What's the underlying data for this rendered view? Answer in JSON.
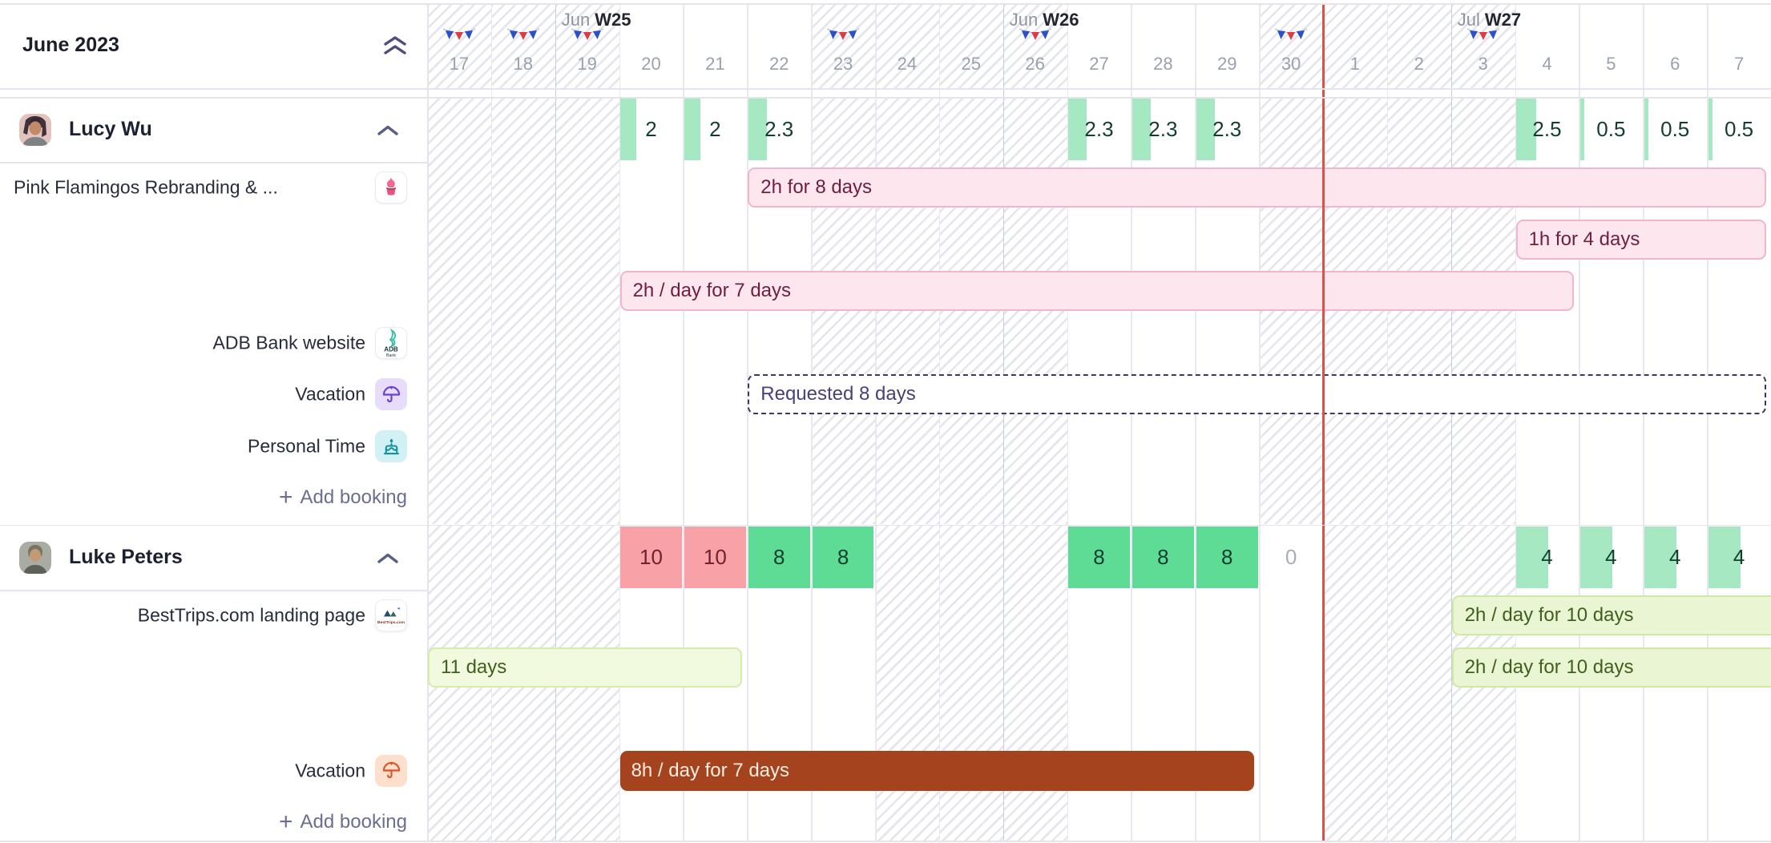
{
  "header": {
    "month_label": "June 2023"
  },
  "timeline": {
    "weeks": [
      {
        "day_index": 2,
        "month": "Jun",
        "week": "W25"
      },
      {
        "day_index": 9,
        "month": "Jun",
        "week": "W26"
      },
      {
        "day_index": 16,
        "month": "Jul",
        "week": "W27"
      }
    ],
    "days": [
      "17",
      "18",
      "19",
      "20",
      "21",
      "22",
      "23",
      "24",
      "25",
      "26",
      "27",
      "28",
      "29",
      "30",
      "1",
      "2",
      "3",
      "4",
      "5",
      "6",
      "7"
    ],
    "flag_day_indexes": [
      0,
      1,
      2,
      6,
      9,
      13,
      16
    ],
    "nonworking_day_indexes": {
      "header": [
        0,
        1,
        2,
        6,
        7,
        8,
        9,
        13,
        14,
        15,
        16
      ],
      "lucy": [
        0,
        1,
        2,
        6,
        7,
        8,
        9,
        13,
        14,
        15,
        16
      ],
      "luke": [
        0,
        1,
        2,
        7,
        8,
        9,
        14,
        15,
        16
      ]
    },
    "today_marker_day_index": 14
  },
  "people": [
    {
      "id": "lucy",
      "name": "Lucy Wu",
      "capacity": [
        {
          "day_index": 3,
          "label": "2",
          "hours": 2
        },
        {
          "day_index": 4,
          "label": "2",
          "hours": 2
        },
        {
          "day_index": 5,
          "label": "2.3",
          "hours": 2.3
        },
        {
          "day_index": 10,
          "label": "2.3",
          "hours": 2.3
        },
        {
          "day_index": 11,
          "label": "2.3",
          "hours": 2.3
        },
        {
          "day_index": 12,
          "label": "2.3",
          "hours": 2.3
        },
        {
          "day_index": 17,
          "label": "2.5",
          "hours": 2.5
        },
        {
          "day_index": 18,
          "label": "0.5",
          "hours": 0.5
        },
        {
          "day_index": 19,
          "label": "0.5",
          "hours": 0.5
        },
        {
          "day_index": 20,
          "label": "0.5",
          "hours": 0.5
        }
      ],
      "sidebar_rows": [
        {
          "row": 1,
          "label": "Pink Flamingos Rebranding & ...",
          "icon": "cupcake-icon",
          "align": "left"
        },
        {
          "row": 4,
          "label": "ADB Bank website",
          "icon": "adb-bank-icon"
        },
        {
          "row": 5,
          "label": "Vacation",
          "icon": "umbrella-purple-icon"
        },
        {
          "row": 6,
          "label": "Personal Time",
          "icon": "cake-icon"
        },
        {
          "row": 7,
          "type": "add",
          "label": "Add booking"
        }
      ],
      "bookings": [
        {
          "row": 1,
          "start_day_index": 5,
          "end_day_index": 20,
          "label": "2h for 8 days",
          "style": "pink"
        },
        {
          "row": 2,
          "start_day_index": 17,
          "end_day_index": 20,
          "label": "1h for 4 days",
          "style": "pink"
        },
        {
          "row": 3,
          "start_day_index": 3,
          "end_day_index": 17,
          "label": "2h / day for 7 days",
          "style": "pink"
        },
        {
          "row": 5,
          "start_day_index": 5,
          "end_day_index": 20,
          "label": "Requested 8 days",
          "style": "requested"
        }
      ]
    },
    {
      "id": "luke",
      "name": "Luke Peters",
      "capacity": [
        {
          "day_index": 3,
          "label": "10",
          "hours": 10
        },
        {
          "day_index": 4,
          "label": "10",
          "hours": 10
        },
        {
          "day_index": 5,
          "label": "8",
          "hours": 8
        },
        {
          "day_index": 6,
          "label": "8",
          "hours": 8
        },
        {
          "day_index": 10,
          "label": "8",
          "hours": 8
        },
        {
          "day_index": 11,
          "label": "8",
          "hours": 8
        },
        {
          "day_index": 12,
          "label": "8",
          "hours": 8
        },
        {
          "day_index": 13,
          "label": "0",
          "hours": 0
        },
        {
          "day_index": 17,
          "label": "4",
          "hours": 4
        },
        {
          "day_index": 18,
          "label": "4",
          "hours": 4
        },
        {
          "day_index": 19,
          "label": "4",
          "hours": 4
        },
        {
          "day_index": 20,
          "label": "4",
          "hours": 4
        }
      ],
      "sidebar_rows": [
        {
          "row": 1,
          "label": "BestTrips.com landing page",
          "icon": "besttrips-icon"
        },
        {
          "row": 4,
          "label": "Vacation",
          "icon": "umbrella-orange-icon"
        },
        {
          "row": 5,
          "type": "add",
          "label": "Add booking"
        }
      ],
      "bookings": [
        {
          "row": 1,
          "start_day_index": 16,
          "end_day_index": 20,
          "label": "2h / day for 10 days",
          "style": "green",
          "flush_right": true
        },
        {
          "row": 2,
          "start_day_index": 0,
          "end_day_index": 4,
          "label": "11 days",
          "style": "green-light"
        },
        {
          "row": 2,
          "start_day_index": 16,
          "end_day_index": 20,
          "label": "2h / day for 10 days",
          "style": "green",
          "flush_right": true
        },
        {
          "row": 4,
          "start_day_index": 3,
          "end_day_index": 12,
          "label": "8h / day for 7 days",
          "style": "rust"
        }
      ]
    }
  ],
  "colors": {
    "capacity_partial": "#a6e8c2",
    "capacity_full": "#5edc96",
    "capacity_over": "#f8a1a6",
    "capacity_over_text": "#6f222e",
    "capacity_zero_text": "#a9adb8",
    "today_line": "#d9534a",
    "flag_blue": "#2b50c8",
    "flag_red": "#df3b40"
  }
}
